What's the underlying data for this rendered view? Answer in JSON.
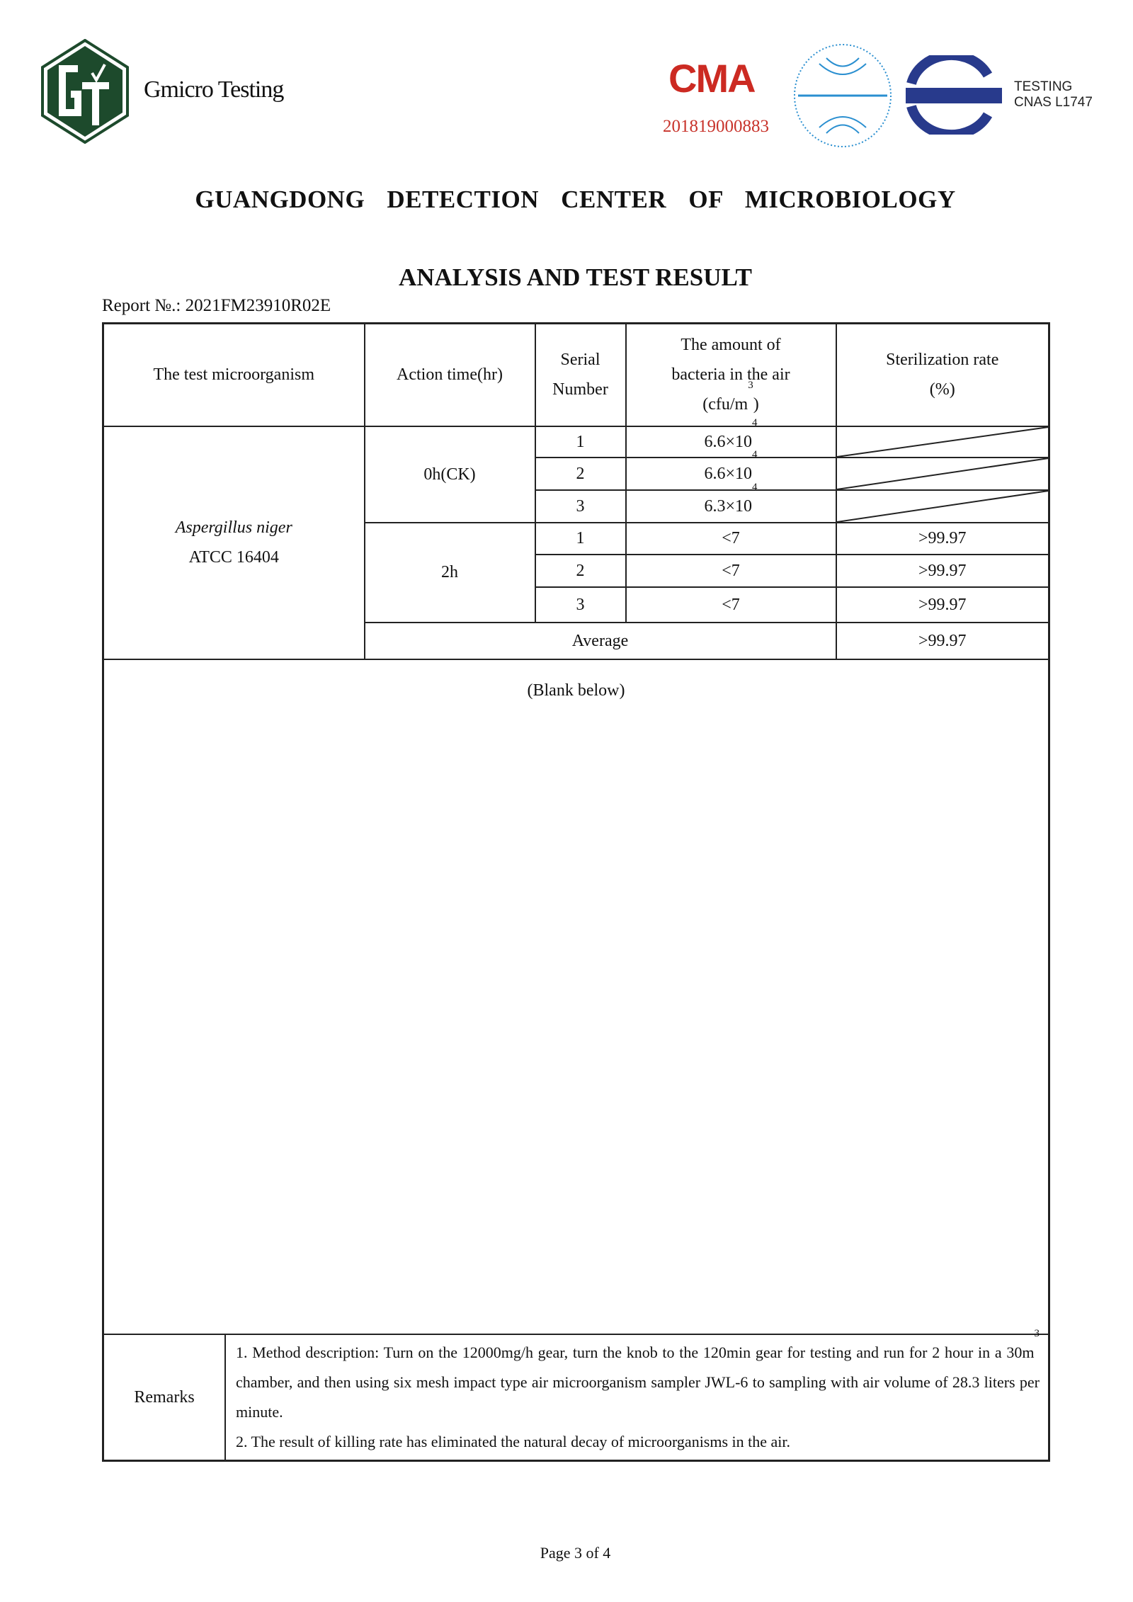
{
  "watermark": "Gmicro Testing",
  "header": {
    "logo_letters": "GT",
    "company_name": "Gmicro Testing",
    "cma_logo_text": "CMA",
    "cma_number": "201819000883",
    "ilac_logo_text": "ilac-MRA",
    "cnas_logo_text": "CNAS",
    "cnas_testing": "TESTING",
    "cnas_code": "CNAS L1747"
  },
  "organization": "GUANGDONG DETECTION CENTER OF MICROBIOLOGY",
  "title": "ANALYSIS AND TEST RESULT",
  "report_no": "Report №.: 2021FM23910R02E",
  "table": {
    "headers": {
      "microorganism": "The test microorganism",
      "action_time": "Action time(hr)",
      "serial_1": "Serial",
      "serial_2": "Number",
      "amount_1": "The amount of",
      "amount_2": "bacteria in the air",
      "amount_3": "(cfu/m",
      "amount_sup": "3",
      "amount_end": ")",
      "rate_1": "Sterilization rate",
      "rate_2": "(%)"
    },
    "microorganism_name": "Aspergillus niger",
    "microorganism_strain": "ATCC 16404",
    "groups": [
      {
        "time": "0h(CK)",
        "rows": [
          {
            "serial": "1",
            "amount": "6.6×10",
            "exp": "4",
            "rate": ""
          },
          {
            "serial": "2",
            "amount": "6.6×10",
            "exp": "4",
            "rate": ""
          },
          {
            "serial": "3",
            "amount": "6.3×10",
            "exp": "4",
            "rate": ""
          }
        ]
      },
      {
        "time": "2h",
        "rows": [
          {
            "serial": "1",
            "amount": "<7",
            "rate": ">99.97"
          },
          {
            "serial": "2",
            "amount": "<7",
            "rate": ">99.97"
          },
          {
            "serial": "3",
            "amount": "<7",
            "rate": ">99.97"
          }
        ]
      }
    ],
    "average_label": "Average",
    "average_rate": ">99.97",
    "blank_note": "(Blank below)",
    "remarks_label": "Remarks",
    "remarks": {
      "line1a": "1. Method description: Turn on the 12000mg/h gear, turn the knob to the 120min gear for testing and run for 2 hour in a 30m",
      "line1sup": "3",
      "line1b": " chamber, and then using six mesh impact type air microorganism sampler JWL-6 to sampling with air volume of 28.3 liters per minute.",
      "line2": "2. The result of killing rate has eliminated the natural decay of microorganisms in the air."
    }
  },
  "footer": "Page 3 of 4",
  "colors": {
    "logo_green": "#1d4a2c",
    "cma_red": "#cc2a22",
    "ilac_blue": "#2a8fd0",
    "cnas_blue": "#283a8c"
  }
}
